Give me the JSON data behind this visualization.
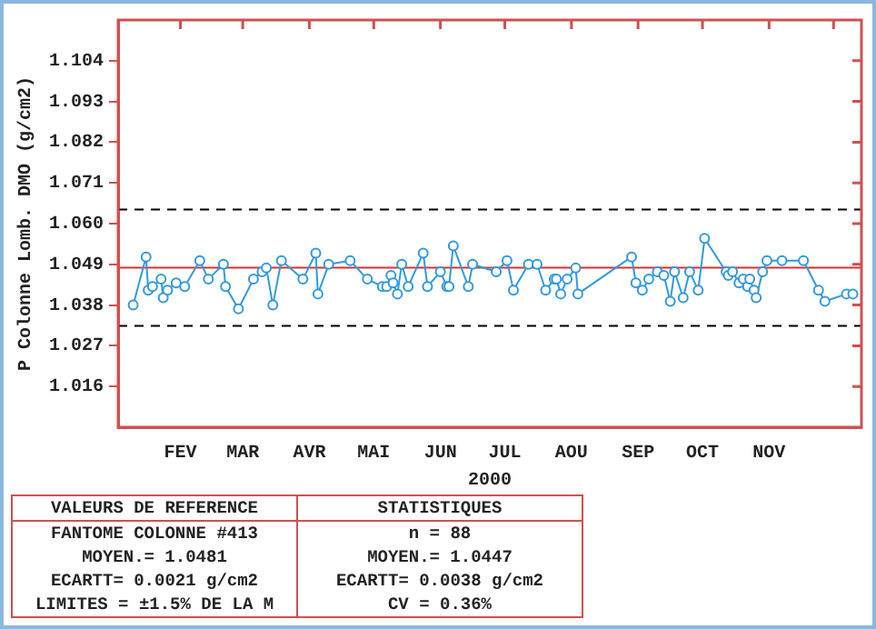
{
  "chart_data": {
    "type": "line",
    "ylabel": "P Colonne Lomb. DMO (g/cm2)",
    "xlabel": "2000",
    "x": [
      "2000-01-10",
      "2000-01-16",
      "2000-01-17",
      "2000-01-19",
      "2000-01-23",
      "2000-01-24",
      "2000-01-26",
      "2000-01-30",
      "2000-02-03",
      "2000-02-10",
      "2000-02-14",
      "2000-02-21",
      "2000-02-22",
      "2000-02-28",
      "2000-03-06",
      "2000-03-10",
      "2000-03-12",
      "2000-03-15",
      "2000-03-19",
      "2000-03-29",
      "2000-04-04",
      "2000-04-05",
      "2000-04-10",
      "2000-04-20",
      "2000-04-28",
      "2000-05-05",
      "2000-05-07",
      "2000-05-09",
      "2000-05-10",
      "2000-05-12",
      "2000-05-14",
      "2000-05-17",
      "2000-05-24",
      "2000-05-26",
      "2000-06-01",
      "2000-06-04",
      "2000-06-05",
      "2000-06-07",
      "2000-06-14",
      "2000-06-16",
      "2000-06-27",
      "2000-07-02",
      "2000-07-05",
      "2000-07-12",
      "2000-07-16",
      "2000-07-20",
      "2000-07-24",
      "2000-07-25",
      "2000-07-27",
      "2000-07-30",
      "2000-08-03",
      "2000-08-04",
      "2000-08-29",
      "2000-08-31",
      "2000-09-03",
      "2000-09-06",
      "2000-09-10",
      "2000-09-13",
      "2000-09-16",
      "2000-09-18",
      "2000-09-22",
      "2000-09-25",
      "2000-09-29",
      "2000-10-02",
      "2000-10-12",
      "2000-10-13",
      "2000-10-15",
      "2000-10-18",
      "2000-10-20",
      "2000-10-22",
      "2000-10-23",
      "2000-10-25",
      "2000-10-26",
      "2000-10-29",
      "2000-10-31",
      "2000-11-07",
      "2000-11-17",
      "2000-11-24",
      "2000-11-27",
      "2000-12-07",
      "2000-12-10"
    ],
    "series": [
      {
        "color": "#3399dd",
        "values": [
          1.038,
          1.051,
          1.042,
          1.043,
          1.045,
          1.04,
          1.042,
          1.044,
          1.043,
          1.05,
          1.045,
          1.049,
          1.043,
          1.037,
          1.045,
          1.047,
          1.048,
          1.038,
          1.05,
          1.045,
          1.052,
          1.041,
          1.049,
          1.05,
          1.045,
          1.043,
          1.043,
          1.046,
          1.044,
          1.041,
          1.049,
          1.043,
          1.052,
          1.043,
          1.047,
          1.043,
          1.043,
          1.054,
          1.043,
          1.049,
          1.047,
          1.05,
          1.042,
          1.049,
          1.049,
          1.042,
          1.045,
          1.045,
          1.041,
          1.045,
          1.048,
          1.041,
          1.051,
          1.044,
          1.042,
          1.045,
          1.047,
          1.046,
          1.039,
          1.047,
          1.04,
          1.047,
          1.042,
          1.056,
          1.047,
          1.046,
          1.047,
          1.044,
          1.045,
          1.043,
          1.045,
          1.042,
          1.04,
          1.047,
          1.05,
          1.05,
          1.05,
          1.042,
          1.039,
          1.041,
          1.041
        ]
      }
    ],
    "xlim": [
      "2000-01-03",
      "2000-12-14"
    ],
    "xticks": [
      {
        "value": "2000-02-01",
        "label": "FEV"
      },
      {
        "value": "2000-03-01",
        "label": "MAR"
      },
      {
        "value": "2000-04-01",
        "label": "AVR"
      },
      {
        "value": "2000-05-01",
        "label": "MAI"
      },
      {
        "value": "2000-06-01",
        "label": "JUN"
      },
      {
        "value": "2000-07-01",
        "label": "JUL"
      },
      {
        "value": "2000-08-01",
        "label": "AOU"
      },
      {
        "value": "2000-09-01",
        "label": "SEP"
      },
      {
        "value": "2000-10-01",
        "label": "OCT"
      },
      {
        "value": "2000-11-01",
        "label": "NOV"
      },
      {
        "value": "2000-12-01",
        "label": null
      }
    ],
    "ylim": [
      1.005,
      1.115
    ],
    "yticks": [
      1.016,
      1.027,
      1.038,
      1.049,
      {
        "value": 1.06,
        "label": "1.060"
      },
      1.071,
      1.082,
      1.093,
      1.104
    ],
    "marker": "circle",
    "line_style": "solid",
    "ref_lines": [
      {
        "axis": "y",
        "value": 1.0481,
        "color": "#e03030",
        "line_style": "solid"
      },
      {
        "axis": "y",
        "value": 1.0638,
        "color": "#000000",
        "line_style": "dashed"
      },
      {
        "axis": "y",
        "value": 1.0324,
        "color": "#000000",
        "line_style": "dashed"
      }
    ],
    "annotations": [
      "VALEURS DE REFERENCE",
      "FANTOME COLONNE #413",
      "MOYEN.= 1.0481",
      "ECARTT= 0.0021 g/cm2",
      "LIMITES = ±1.5% DE LA M",
      "STATISTIQUES",
      "n = 88",
      "MOYEN.= 1.0447",
      "ECARTT= 0.0038 g/cm2",
      "CV = 0.36%"
    ]
  }
}
